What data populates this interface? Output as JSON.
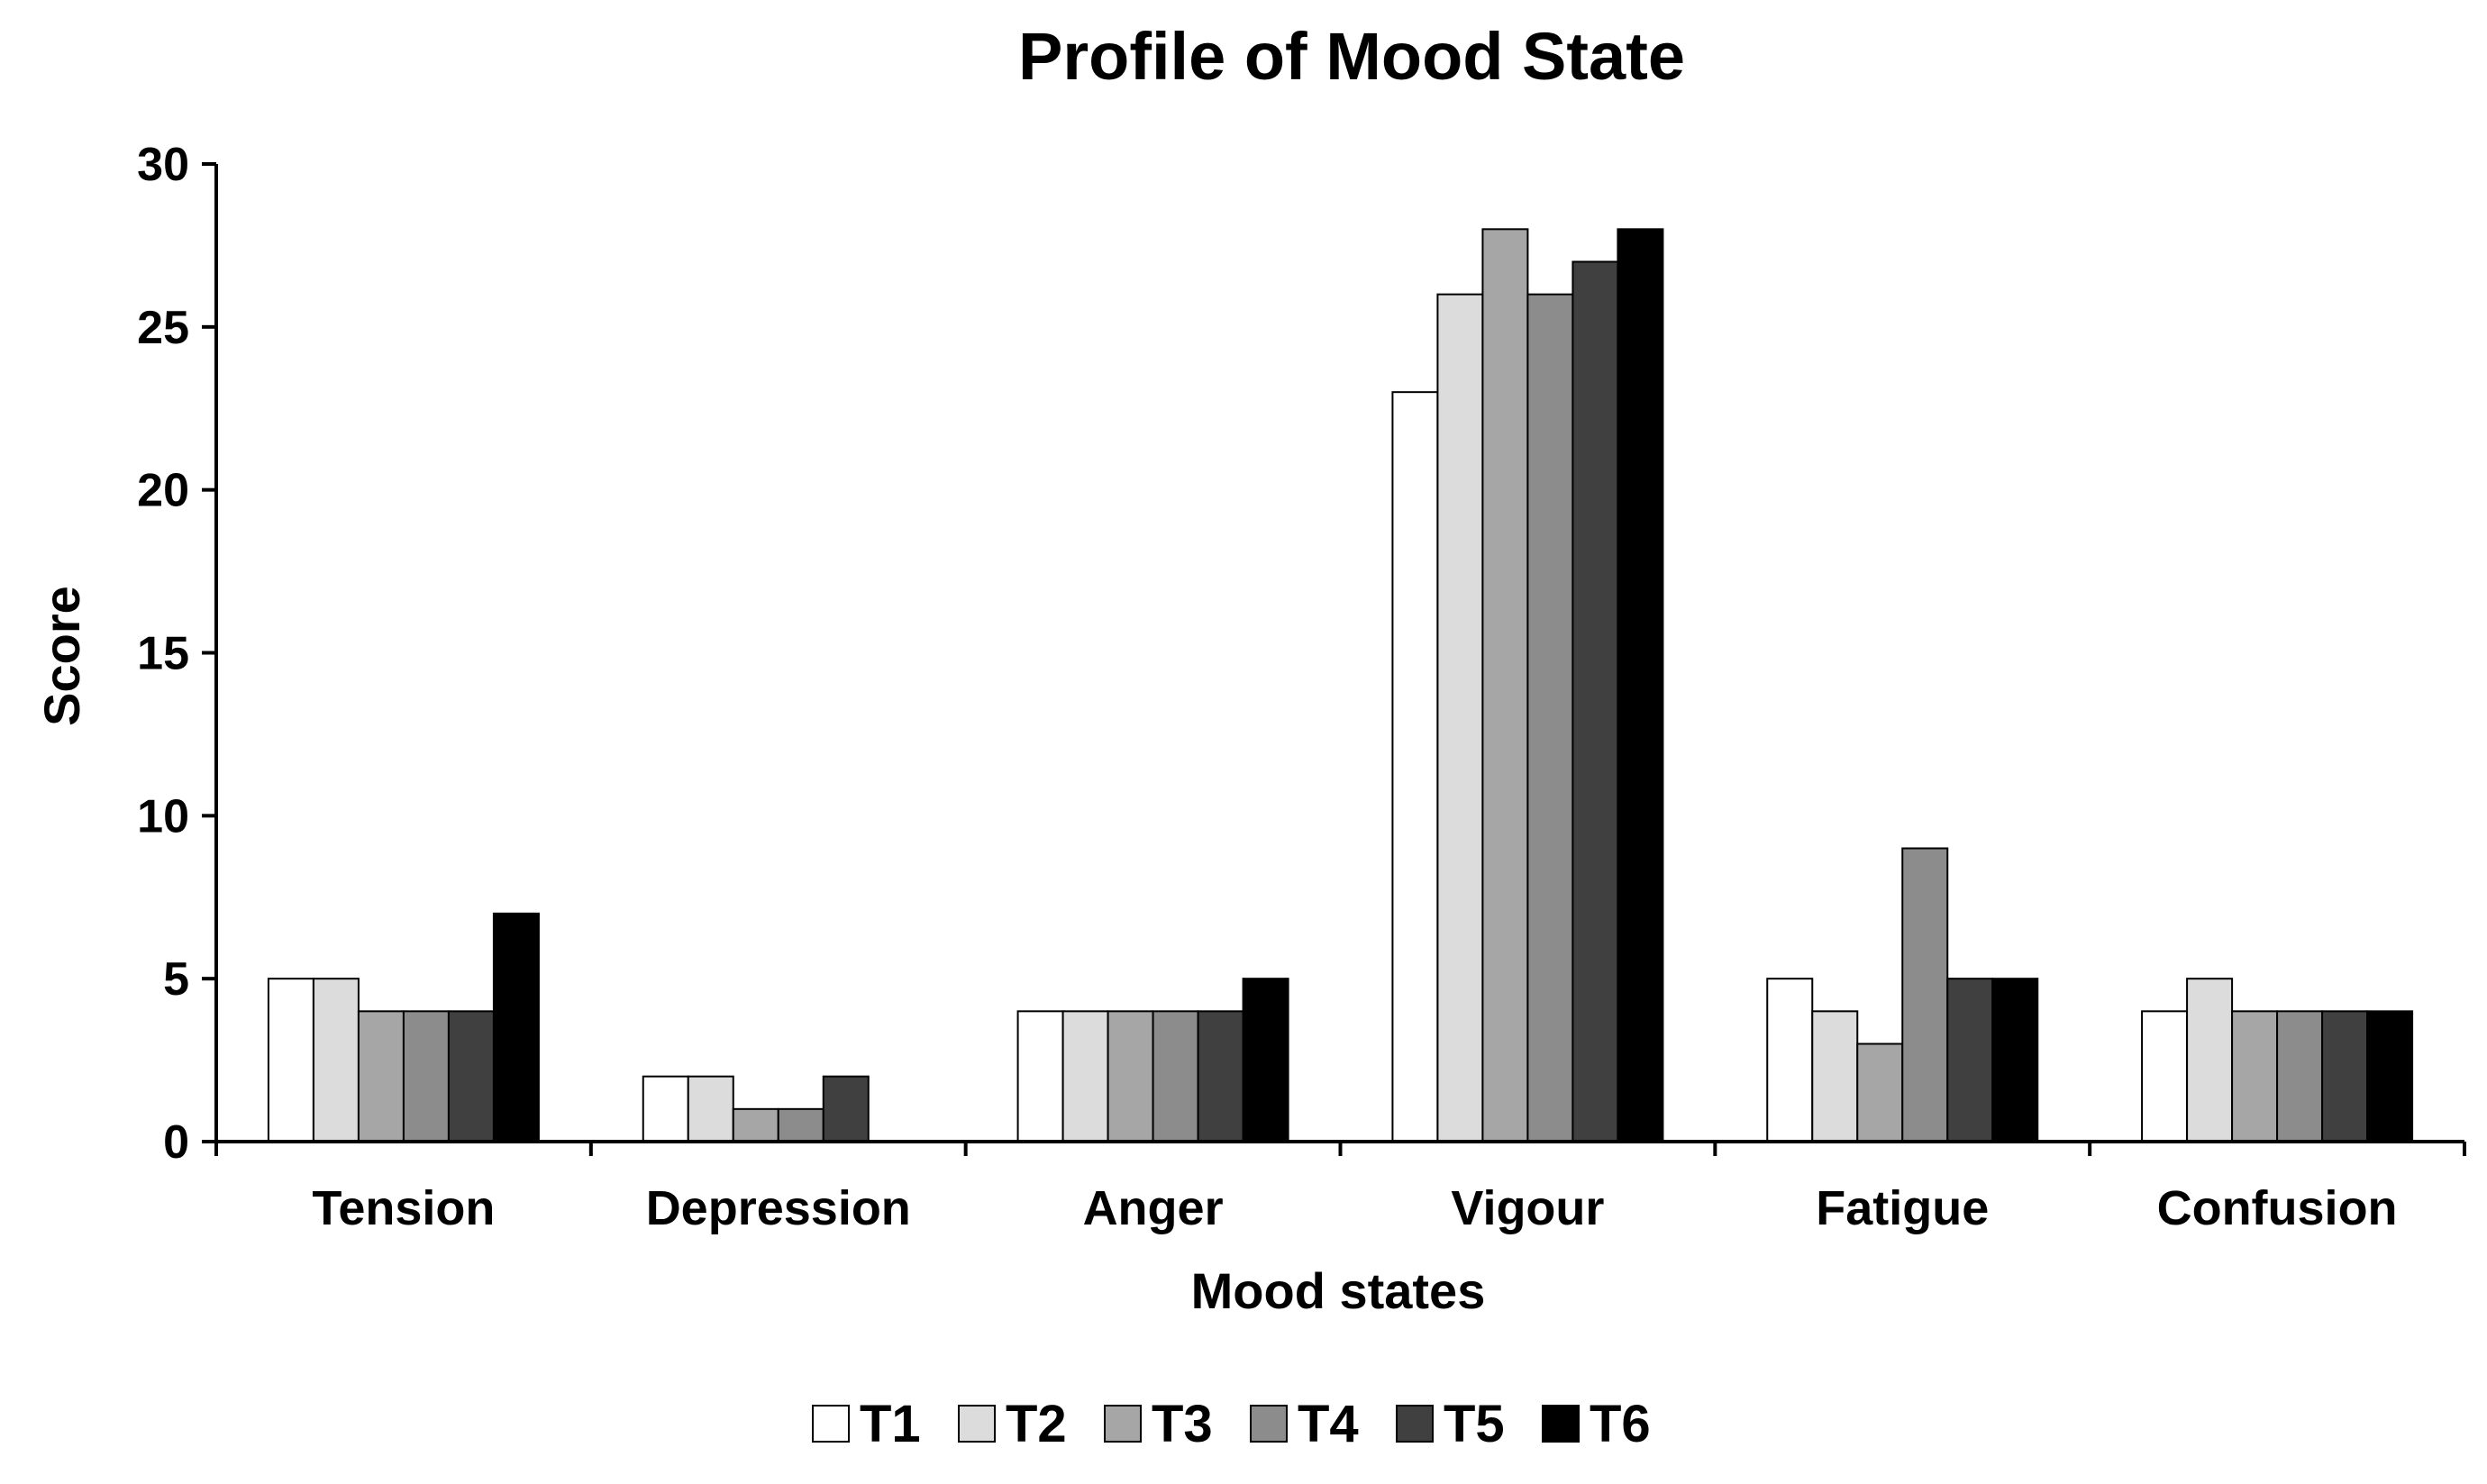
{
  "chart_data": {
    "type": "bar",
    "title": "Profile of Mood State",
    "xlabel": "Mood states",
    "ylabel": "Score",
    "ylim": [
      0,
      30
    ],
    "yticks": [
      0,
      5,
      10,
      15,
      20,
      25,
      30
    ],
    "grid": false,
    "legend_position": "bottom",
    "categories": [
      "Tension",
      "Depression",
      "Anger",
      "Vigour",
      "Fatigue",
      "Confusion"
    ],
    "series": [
      {
        "name": "T1",
        "color": "#ffffff",
        "values": [
          5,
          2,
          4,
          23,
          5,
          4
        ]
      },
      {
        "name": "T2",
        "color": "#dcdcdc",
        "values": [
          5,
          2,
          4,
          26,
          4,
          5
        ]
      },
      {
        "name": "T3",
        "color": "#a6a6a6",
        "values": [
          4,
          1,
          4,
          28,
          3,
          4
        ]
      },
      {
        "name": "T4",
        "color": "#8c8c8c",
        "values": [
          4,
          1,
          4,
          26,
          9,
          4
        ]
      },
      {
        "name": "T5",
        "color": "#404040",
        "values": [
          4,
          2,
          4,
          27,
          5,
          4
        ]
      },
      {
        "name": "T6",
        "color": "#000000",
        "values": [
          7,
          0,
          5,
          28,
          5,
          4
        ]
      }
    ]
  }
}
